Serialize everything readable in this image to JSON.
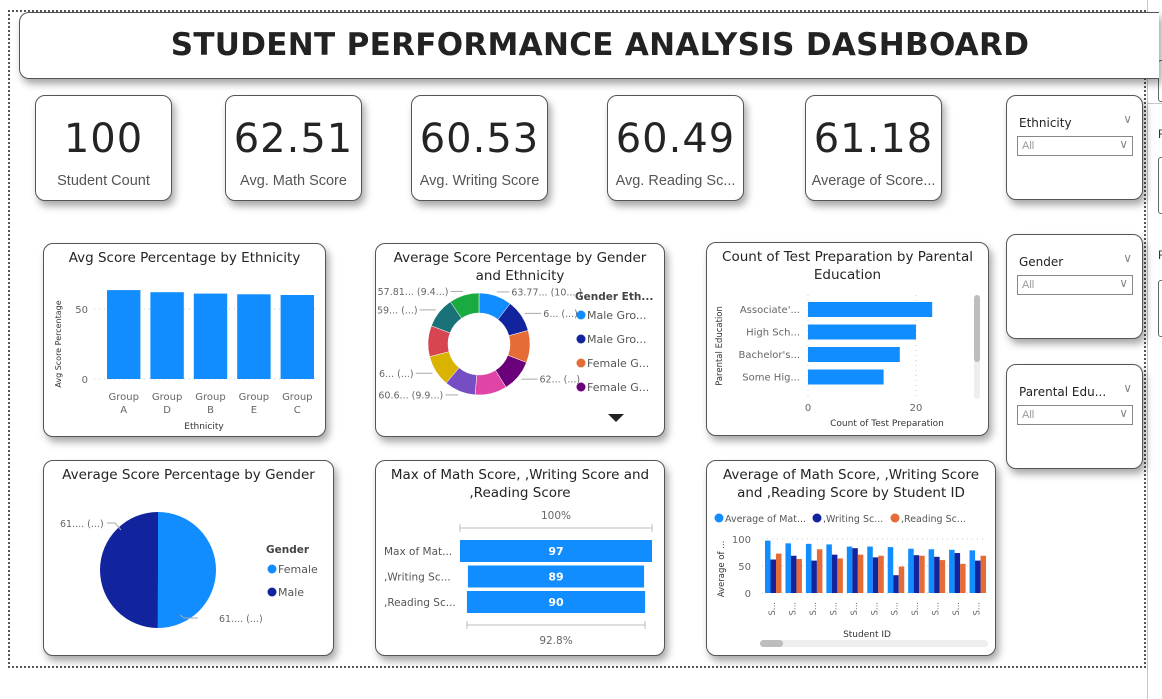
{
  "title": "STUDENT PERFORMANCE ANALYSIS DASHBOARD",
  "kpis": [
    {
      "value": "100",
      "label": "Student Count"
    },
    {
      "value": "62.51",
      "label": "Avg. Math Score"
    },
    {
      "value": "60.53",
      "label": "Avg. Writing Score"
    },
    {
      "value": "60.49",
      "label": "Avg. Reading Sc..."
    },
    {
      "value": "61.18",
      "label": "Average of Score..."
    }
  ],
  "slicers": [
    {
      "title": "Ethnicity",
      "value": "All"
    },
    {
      "title": "Gender",
      "value": "All"
    },
    {
      "title": "Parental Edu...",
      "value": "All"
    }
  ],
  "right_pane": {
    "label_1": "F",
    "label_2": "F"
  },
  "colors": {
    "blue": "#118DFF",
    "dark_blue": "#12239E",
    "orange": "#E66C37",
    "purple": "#6B007B"
  },
  "chart_data": [
    {
      "id": "ethnicity",
      "type": "bar",
      "title": "Avg Score Percentage by Ethnicity",
      "xlabel": "Ethnicity",
      "ylabel": "Avg Score Percentage",
      "categories": [
        [
          "Group",
          "A"
        ],
        [
          "Group",
          "D"
        ],
        [
          "Group",
          "B"
        ],
        [
          "Group",
          "E"
        ],
        [
          "Group",
          "C"
        ]
      ],
      "values": [
        63.5,
        62,
        61,
        60.5,
        60
      ],
      "yticks": [
        0,
        50
      ],
      "ylim": [
        0,
        75
      ],
      "grid": true
    },
    {
      "id": "gender-ethnicity",
      "type": "pie",
      "donut": true,
      "title": "Average Score Percentage by Gender and Ethnicity",
      "legend_title": "Gender Eth...",
      "legend": [
        "Male Gro...",
        "Male Gro...",
        "Female G...",
        "Female G..."
      ],
      "values": [
        63.77,
        62.5,
        62.3,
        62.1,
        61.5,
        60.6,
        60.2,
        59.8,
        59.2,
        57.81
      ],
      "colors": [
        "#118DFF",
        "#12239E",
        "#E66C37",
        "#6B007B",
        "#E044A7",
        "#744EC2",
        "#D9B300",
        "#D64550",
        "#197278",
        "#1AAB40"
      ],
      "data_labels": [
        {
          "slice": 0,
          "text": "63.77... (10....)"
        },
        {
          "slice": 1,
          "text": "6... (...)"
        },
        {
          "slice": 3,
          "text": "62... (...)"
        },
        {
          "slice": 5,
          "text": "60.6... (9.9...)"
        },
        {
          "slice": 6,
          "text": "6... (...)"
        },
        {
          "slice": 8,
          "text": "59... (...)"
        },
        {
          "slice": 9,
          "text": "57.81... (9.4...)"
        }
      ]
    },
    {
      "id": "test-prep",
      "type": "bar",
      "orientation": "horizontal",
      "title": "Count of Test Preparation by Parental Education",
      "xlabel": "Count of Test Preparation",
      "ylabel": "Parental Education",
      "categories": [
        "Associate'...",
        "High Sch...",
        "Bachelor's...",
        "Some Hig..."
      ],
      "values": [
        23,
        20,
        17,
        14
      ],
      "xticks": [
        0,
        20
      ],
      "xlim": [
        0,
        25
      ],
      "grid": true
    },
    {
      "id": "gender",
      "type": "pie",
      "title": "Average Score Percentage by Gender",
      "legend_title": "Gender",
      "categories": [
        "Female",
        "Male"
      ],
      "values": [
        61.2,
        61.1
      ],
      "colors": [
        "#118DFF",
        "#12239E"
      ],
      "data_labels": [
        "61.... (...)",
        "61.... (...)"
      ]
    },
    {
      "id": "funnel",
      "type": "bar",
      "subtype": "funnel",
      "title": "Max of Math Score, ,Writing Score and ,Reading Score",
      "categories": [
        "Max of Mat...",
        ",Writing Sc...",
        ",Reading Sc..."
      ],
      "values": [
        97,
        89,
        90
      ],
      "top_label": "100%",
      "bottom_label": "92.8%"
    },
    {
      "id": "by-student",
      "type": "bar",
      "subtype": "clustered",
      "title": "Average of Math Score, ,Writing Score and ,Reading Score by Student ID",
      "xlabel": "Student ID",
      "ylabel": "Average of ...",
      "categories": [
        "S...",
        "S...",
        "S...",
        "S...",
        "S...",
        "S...",
        "S...",
        "S...",
        "S...",
        "S...",
        "S..."
      ],
      "series": [
        {
          "name": "Average of Mat...",
          "color": "#118DFF",
          "values": [
            97,
            92,
            91,
            90,
            86,
            86,
            85,
            82,
            81,
            80,
            79
          ]
        },
        {
          "name": ",Writing Sc...",
          "color": "#12239E",
          "values": [
            62,
            69,
            60,
            71,
            83,
            66,
            33,
            70,
            67,
            74,
            60
          ]
        },
        {
          "name": ",Reading Sc...",
          "color": "#E66C37",
          "values": [
            73,
            63,
            81,
            64,
            71,
            69,
            49,
            69,
            61,
            54,
            69
          ]
        }
      ],
      "yticks": [
        0,
        50,
        100
      ],
      "ylim": [
        0,
        100
      ],
      "grid": true
    }
  ]
}
